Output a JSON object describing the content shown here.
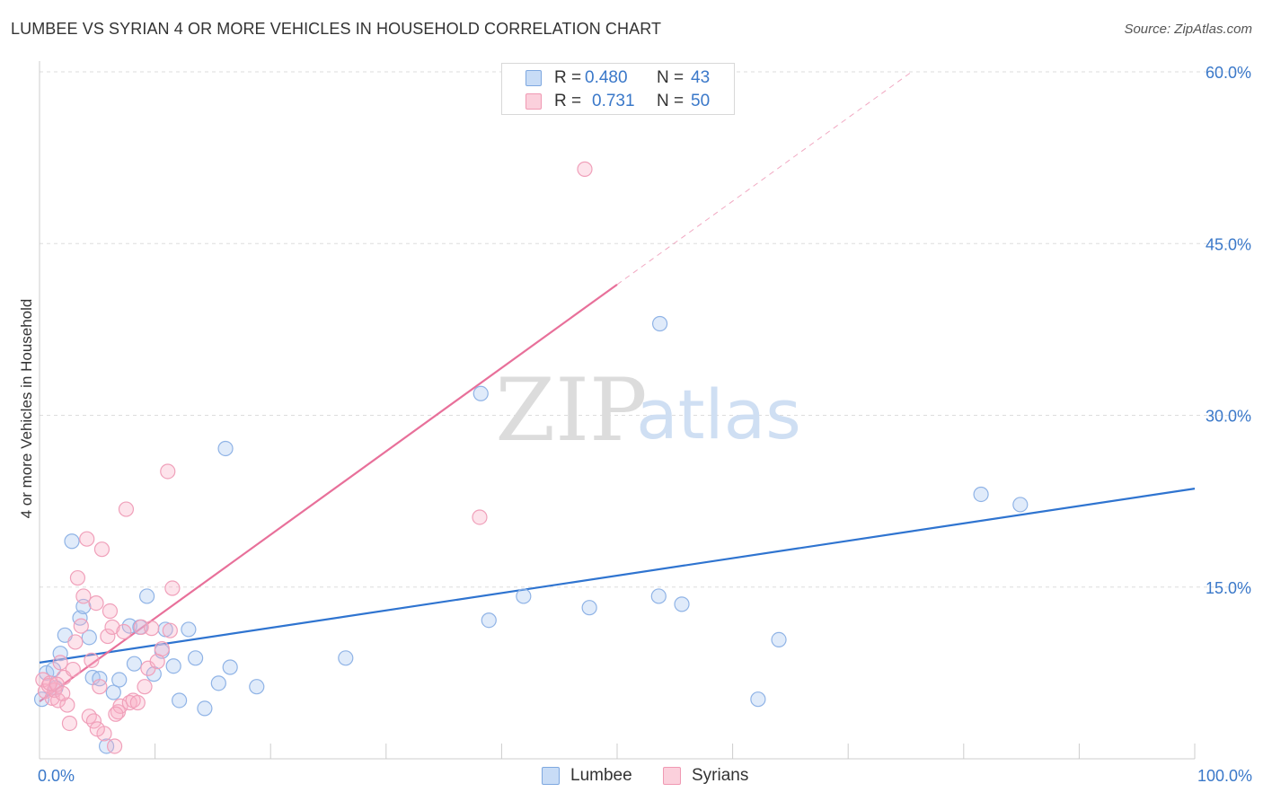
{
  "title": "LUMBEE VS SYRIAN 4 OR MORE VEHICLES IN HOUSEHOLD CORRELATION CHART",
  "source": "Source: ZipAtlas.com",
  "watermark": {
    "zip": "ZIP",
    "atlas": "atlas"
  },
  "legend_top": {
    "r_label": "R =",
    "n_label": "N =",
    "rows": [
      {
        "r": "0.480",
        "n": "43",
        "fill": "#c8dcf6",
        "stroke": "#7ea8e0"
      },
      {
        "r": "0.731",
        "n": "50",
        "fill": "#fbd0dc",
        "stroke": "#f099b3"
      }
    ]
  },
  "legend_bottom": [
    {
      "label": "Lumbee",
      "fill": "#c8dcf6",
      "stroke": "#7ea8e0"
    },
    {
      "label": "Syrians",
      "fill": "#fbd0dc",
      "stroke": "#f099b3"
    }
  ],
  "colors": {
    "lumbee_point_fill": "rgba(165,197,240,0.35)",
    "lumbee_point_stroke": "#8fb3e6",
    "lumbee_line": "#2f74d0",
    "syrian_point_fill": "rgba(248,176,198,0.35)",
    "syrian_point_stroke": "#f0a0ba",
    "syrian_line": "#e8709a",
    "tick_label": "#3a78c9",
    "grid": "#dddddd",
    "axis": "#cccccc"
  },
  "chart_data": {
    "type": "scatter",
    "title": "LUMBEE VS SYRIAN 4 OR MORE VEHICLES IN HOUSEHOLD CORRELATION CHART",
    "xlabel": "",
    "ylabel": "4 or more Vehicles in Household",
    "xlim": [
      0,
      100
    ],
    "ylim": [
      0,
      61.5
    ],
    "x_tick_labels": [
      {
        "value": 0,
        "label": "0.0%"
      },
      {
        "value": 100,
        "label": "100.0%"
      }
    ],
    "y_ticks": [
      {
        "value": 15,
        "label": "15.0%"
      },
      {
        "value": 30,
        "label": "30.0%"
      },
      {
        "value": 45,
        "label": "45.0%"
      },
      {
        "value": 60,
        "label": "60.0%"
      }
    ],
    "x_minor_ticks": [
      10,
      20,
      30,
      40,
      50,
      60,
      70,
      80,
      90
    ],
    "series": [
      {
        "name": "Lumbee",
        "r": 0.48,
        "n": 43,
        "trend": {
          "x0": 0,
          "y0": 8.4,
          "x1": 100,
          "y1": 23.6,
          "dashed_from": null
        },
        "points": [
          [
            0.2,
            5.2
          ],
          [
            0.6,
            7.5
          ],
          [
            1.2,
            7.8
          ],
          [
            1.8,
            9.2
          ],
          [
            2.2,
            10.8
          ],
          [
            2.8,
            19.0
          ],
          [
            3.5,
            12.3
          ],
          [
            3.8,
            13.3
          ],
          [
            4.3,
            10.6
          ],
          [
            4.6,
            7.1
          ],
          [
            5.2,
            7.0
          ],
          [
            5.8,
            1.1
          ],
          [
            6.4,
            5.8
          ],
          [
            6.9,
            6.9
          ],
          [
            7.8,
            11.6
          ],
          [
            8.2,
            8.3
          ],
          [
            8.7,
            11.5
          ],
          [
            9.3,
            14.2
          ],
          [
            9.9,
            7.4
          ],
          [
            10.6,
            9.4
          ],
          [
            10.9,
            11.3
          ],
          [
            11.6,
            8.1
          ],
          [
            12.1,
            5.1
          ],
          [
            12.9,
            11.3
          ],
          [
            13.5,
            8.8
          ],
          [
            14.3,
            4.4
          ],
          [
            15.5,
            6.6
          ],
          [
            16.1,
            27.1
          ],
          [
            16.5,
            8.0
          ],
          [
            18.8,
            6.3
          ],
          [
            26.5,
            8.8
          ],
          [
            38.2,
            31.9
          ],
          [
            38.9,
            12.1
          ],
          [
            41.9,
            14.2
          ],
          [
            47.6,
            13.2
          ],
          [
            53.7,
            38.0
          ],
          [
            55.6,
            13.5
          ],
          [
            62.2,
            5.2
          ],
          [
            64.0,
            10.4
          ],
          [
            81.5,
            23.1
          ],
          [
            84.9,
            22.2
          ],
          [
            53.6,
            14.2
          ],
          [
            1.4,
            6.2
          ]
        ]
      },
      {
        "name": "Syrians",
        "r": 0.731,
        "n": 50,
        "trend": {
          "x0": 0,
          "y0": 5.0,
          "x1": 75.5,
          "y1": 60.0,
          "dashed_from": 50.0
        },
        "points": [
          [
            0.3,
            6.9
          ],
          [
            0.5,
            5.9
          ],
          [
            0.8,
            6.4
          ],
          [
            1.1,
            5.3
          ],
          [
            1.3,
            6.0
          ],
          [
            1.6,
            5.1
          ],
          [
            1.8,
            8.4
          ],
          [
            2.1,
            7.1
          ],
          [
            2.4,
            4.7
          ],
          [
            2.6,
            3.1
          ],
          [
            2.9,
            7.8
          ],
          [
            3.1,
            10.2
          ],
          [
            3.3,
            15.8
          ],
          [
            3.6,
            11.6
          ],
          [
            3.8,
            14.2
          ],
          [
            4.1,
            19.2
          ],
          [
            4.3,
            3.7
          ],
          [
            4.5,
            8.6
          ],
          [
            4.7,
            3.3
          ],
          [
            4.9,
            13.6
          ],
          [
            5.2,
            6.3
          ],
          [
            5.4,
            18.3
          ],
          [
            5.6,
            2.2
          ],
          [
            5.9,
            10.7
          ],
          [
            6.1,
            12.9
          ],
          [
            6.3,
            11.5
          ],
          [
            6.5,
            1.1
          ],
          [
            6.8,
            4.1
          ],
          [
            7.0,
            4.6
          ],
          [
            7.3,
            11.1
          ],
          [
            7.5,
            21.8
          ],
          [
            7.8,
            4.9
          ],
          [
            8.1,
            5.1
          ],
          [
            8.5,
            4.9
          ],
          [
            8.8,
            11.5
          ],
          [
            9.1,
            6.3
          ],
          [
            9.4,
            7.9
          ],
          [
            9.7,
            11.4
          ],
          [
            10.2,
            8.5
          ],
          [
            10.6,
            9.6
          ],
          [
            11.1,
            25.1
          ],
          [
            11.3,
            11.2
          ],
          [
            11.5,
            14.9
          ],
          [
            38.1,
            21.1
          ],
          [
            47.2,
            51.5
          ],
          [
            0.9,
            6.6
          ],
          [
            1.5,
            6.5
          ],
          [
            2.0,
            5.7
          ],
          [
            5.0,
            2.6
          ],
          [
            6.6,
            3.9
          ]
        ]
      }
    ]
  }
}
